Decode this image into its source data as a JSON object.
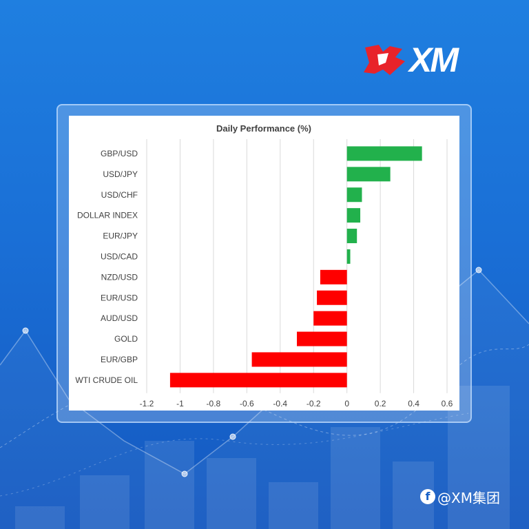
{
  "brand": {
    "logo_text": "XM",
    "logo_color": "#e8232a"
  },
  "watermark": {
    "icon": "f",
    "text": "@XM集团"
  },
  "colors": {
    "positive": "#22b14c",
    "negative": "#ff0000",
    "grid": "#d9d9d9",
    "text": "#404040"
  },
  "chart_data": {
    "type": "bar",
    "orientation": "horizontal",
    "title": "Daily Performance (%)",
    "xlabel": "",
    "ylabel": "",
    "categories": [
      "GBP/USD",
      "USD/JPY",
      "USD/CHF",
      "DOLLAR INDEX",
      "EUR/JPY",
      "USD/CAD",
      "NZD/USD",
      "EUR/USD",
      "AUD/USD",
      "GOLD",
      "EUR/GBP",
      "WTI CRUDE OIL"
    ],
    "values": [
      0.45,
      0.26,
      0.09,
      0.08,
      0.06,
      0.02,
      -0.16,
      -0.18,
      -0.2,
      -0.3,
      -0.57,
      -1.06
    ],
    "xlim": [
      -1.2,
      0.6
    ],
    "xticks": [
      -1.2,
      -1,
      -0.8,
      -0.6,
      -0.4,
      -0.2,
      0,
      0.2,
      0.4,
      0.6
    ],
    "xtick_labels": [
      "-1.2",
      "-1",
      "-0.8",
      "-0.6",
      "-0.4",
      "-0.2",
      "0",
      "0.2",
      "0.4",
      "0.6"
    ],
    "grid": "vertical"
  }
}
